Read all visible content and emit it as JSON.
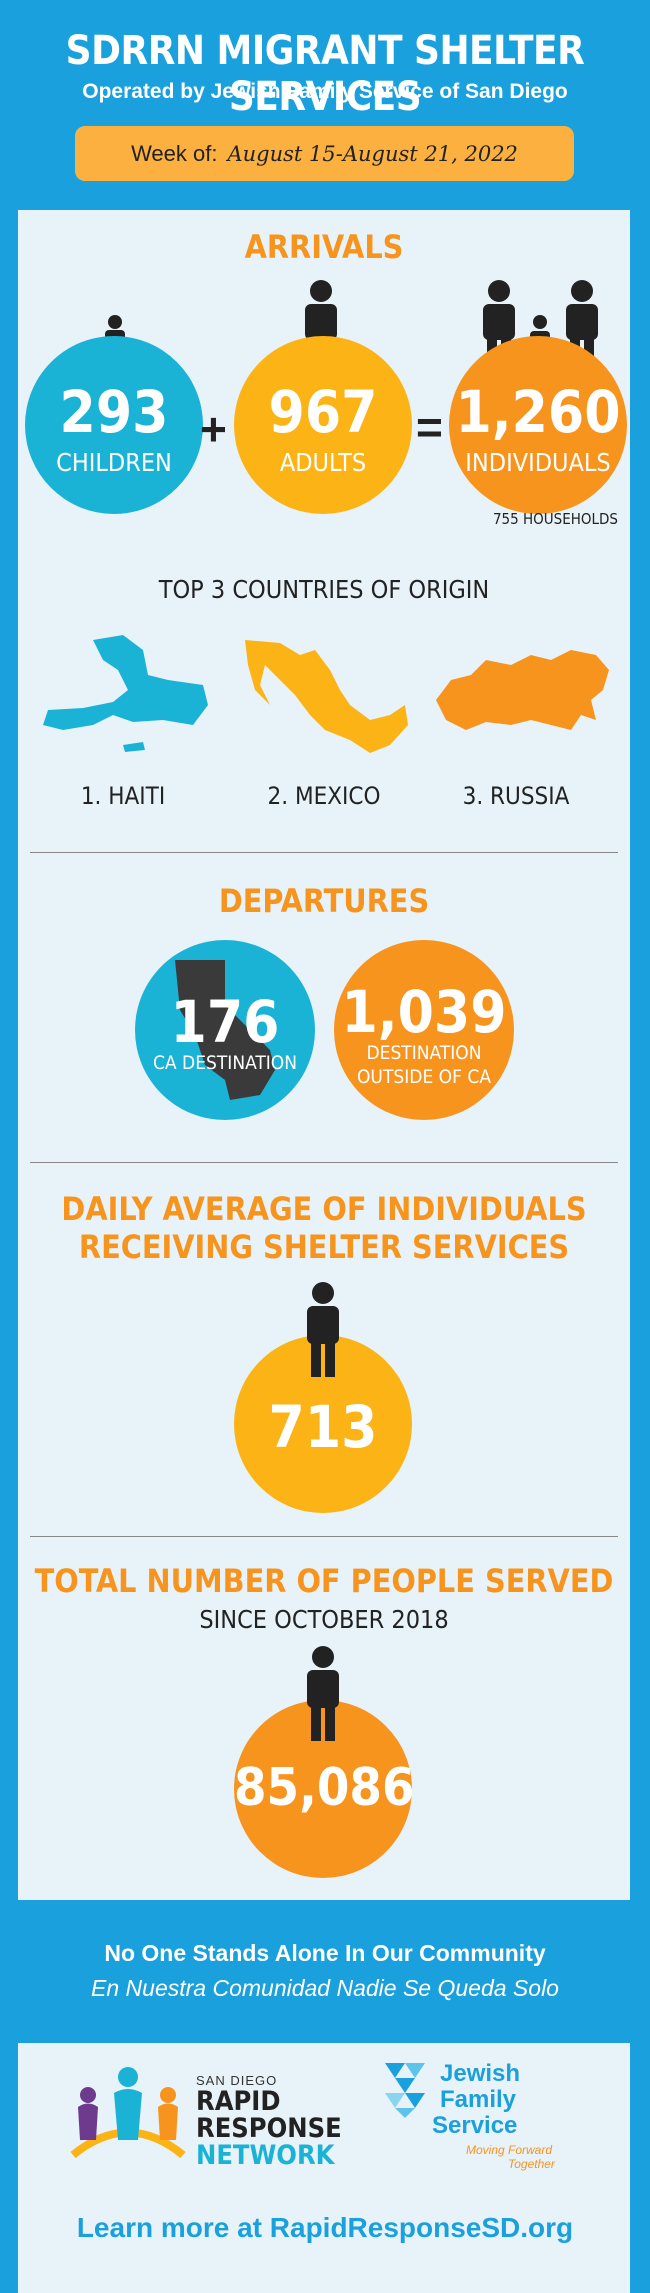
{
  "header": {
    "title": "SDRRN MIGRANT SHELTER SERVICES",
    "subtitle": "Operated by Jewish Family Service of San Diego",
    "week_label": "Week of:",
    "week_dates": "August 15-August 21, 2022"
  },
  "arrivals": {
    "heading": "ARRIVALS",
    "children": {
      "value": "293",
      "label": "CHILDREN"
    },
    "adults": {
      "value": "967",
      "label": "ADULTS"
    },
    "individuals": {
      "value": "1,260",
      "label": "INDIVIDUALS"
    },
    "plus": "+",
    "equals": "=",
    "households": "755 HOUSEHOLDS"
  },
  "countries": {
    "heading": "TOP 3 COUNTRIES OF ORIGIN",
    "items": [
      {
        "label": "1. HAITI",
        "icon": "haiti-map-icon"
      },
      {
        "label": "2. MEXICO",
        "icon": "mexico-map-icon"
      },
      {
        "label": "3. RUSSIA",
        "icon": "russia-map-icon"
      }
    ]
  },
  "departures": {
    "heading": "DEPARTURES",
    "ca": {
      "value": "176",
      "label": "CA DESTINATION"
    },
    "outside": {
      "value": "1,039",
      "label_line1": "DESTINATION",
      "label_line2": "OUTSIDE OF CA"
    }
  },
  "daily": {
    "heading_line1": "DAILY AVERAGE OF INDIVIDUALS",
    "heading_line2": "RECEIVING SHELTER SERVICES",
    "value": "713"
  },
  "total": {
    "heading": "TOTAL NUMBER OF PEOPLE SERVED",
    "subheading": "SINCE OCTOBER 2018",
    "value": "85,086"
  },
  "footer": {
    "line1": "No One Stands Alone In Our Community",
    "line2": "En Nuestra Comunidad Nadie Se Queda Solo",
    "rrn_small": "SAN DIEGO",
    "rrn_line1": "RAPID",
    "rrn_line2": "RESPONSE",
    "rrn_line3": "NETWORK",
    "jfs_line1": "Jewish",
    "jfs_line2": "Family",
    "jfs_line3": "Service",
    "jfs_tag1": "Moving Forward",
    "jfs_tag2": "Together",
    "learn_more": "Learn more at RapidResponseSD.org"
  },
  "colors": {
    "blue": "#1aa0dc",
    "teal": "#1ab3d6",
    "orange": "#f7941d",
    "yellow": "#fcb315"
  }
}
